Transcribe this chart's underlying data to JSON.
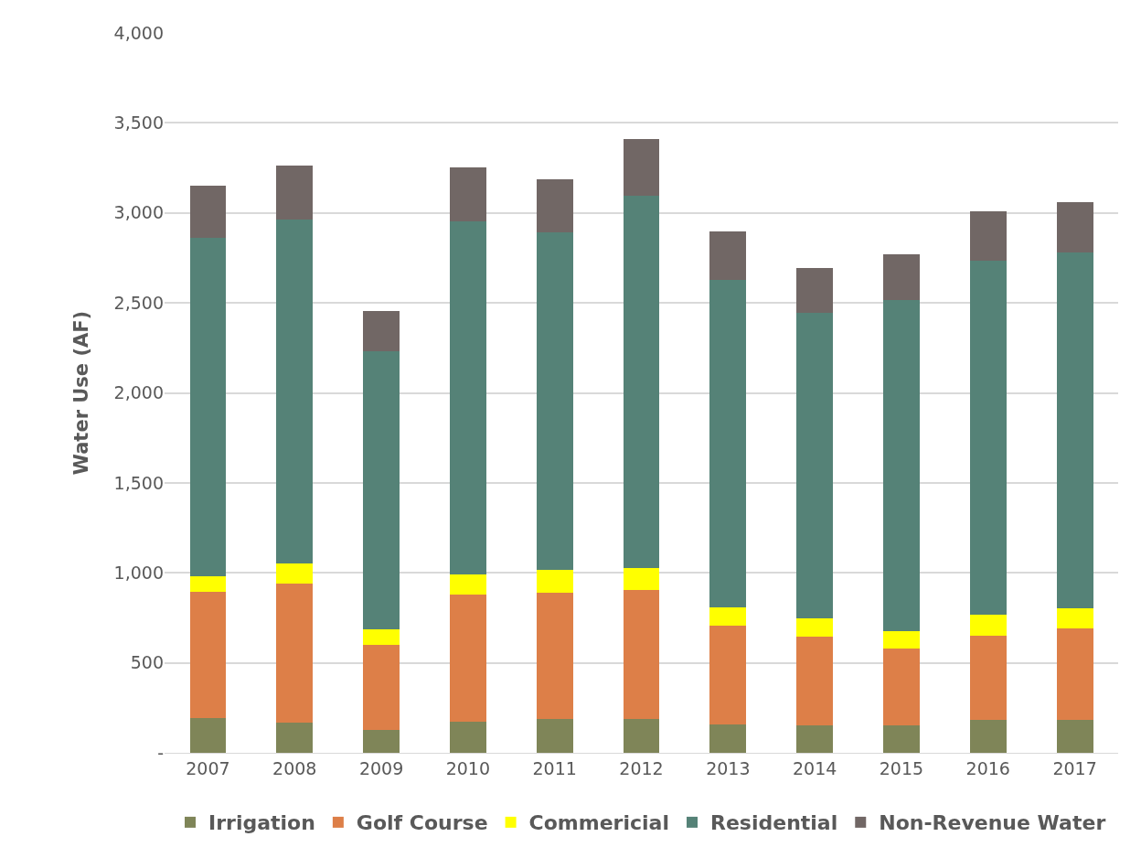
{
  "chart_data": {
    "type": "bar",
    "stacked": true,
    "ylabel": "Water Use (AF)",
    "categories": [
      "2007",
      "2008",
      "2009",
      "2010",
      "2011",
      "2012",
      "2013",
      "2014",
      "2015",
      "2016",
      "2017"
    ],
    "series": [
      {
        "name": "Irrigation",
        "color": "#7f8558",
        "values": [
          195,
          170,
          125,
          175,
          190,
          190,
          160,
          150,
          150,
          185,
          185
        ]
      },
      {
        "name": "Golf Course",
        "color": "#dd7f48",
        "values": [
          700,
          770,
          475,
          705,
          700,
          715,
          545,
          495,
          430,
          465,
          505
        ]
      },
      {
        "name": "Commericial",
        "color": "#ffff00",
        "values": [
          85,
          110,
          85,
          110,
          125,
          120,
          105,
          100,
          95,
          120,
          115
        ]
      },
      {
        "name": "Residential",
        "color": "#558277",
        "values": [
          1880,
          1915,
          1545,
          1965,
          1875,
          2070,
          1820,
          1700,
          1840,
          1965,
          1975
        ]
      },
      {
        "name": "Non-Revenue Water",
        "color": "#716765",
        "values": [
          290,
          300,
          225,
          300,
          295,
          315,
          265,
          250,
          255,
          275,
          280
        ]
      }
    ],
    "ylim": [
      0,
      4000
    ],
    "yticks": [
      {
        "value": 0,
        "label": "-"
      },
      {
        "value": 500,
        "label": "500"
      },
      {
        "value": 1000,
        "label": "1,000"
      },
      {
        "value": 1500,
        "label": "1,500"
      },
      {
        "value": 2000,
        "label": "2,000"
      },
      {
        "value": 2500,
        "label": "2,500"
      },
      {
        "value": 3000,
        "label": "3,000"
      },
      {
        "value": 3500,
        "label": "3,500"
      },
      {
        "value": 4000,
        "label": "4,000"
      }
    ],
    "grid": "y",
    "legend": "bottom"
  }
}
